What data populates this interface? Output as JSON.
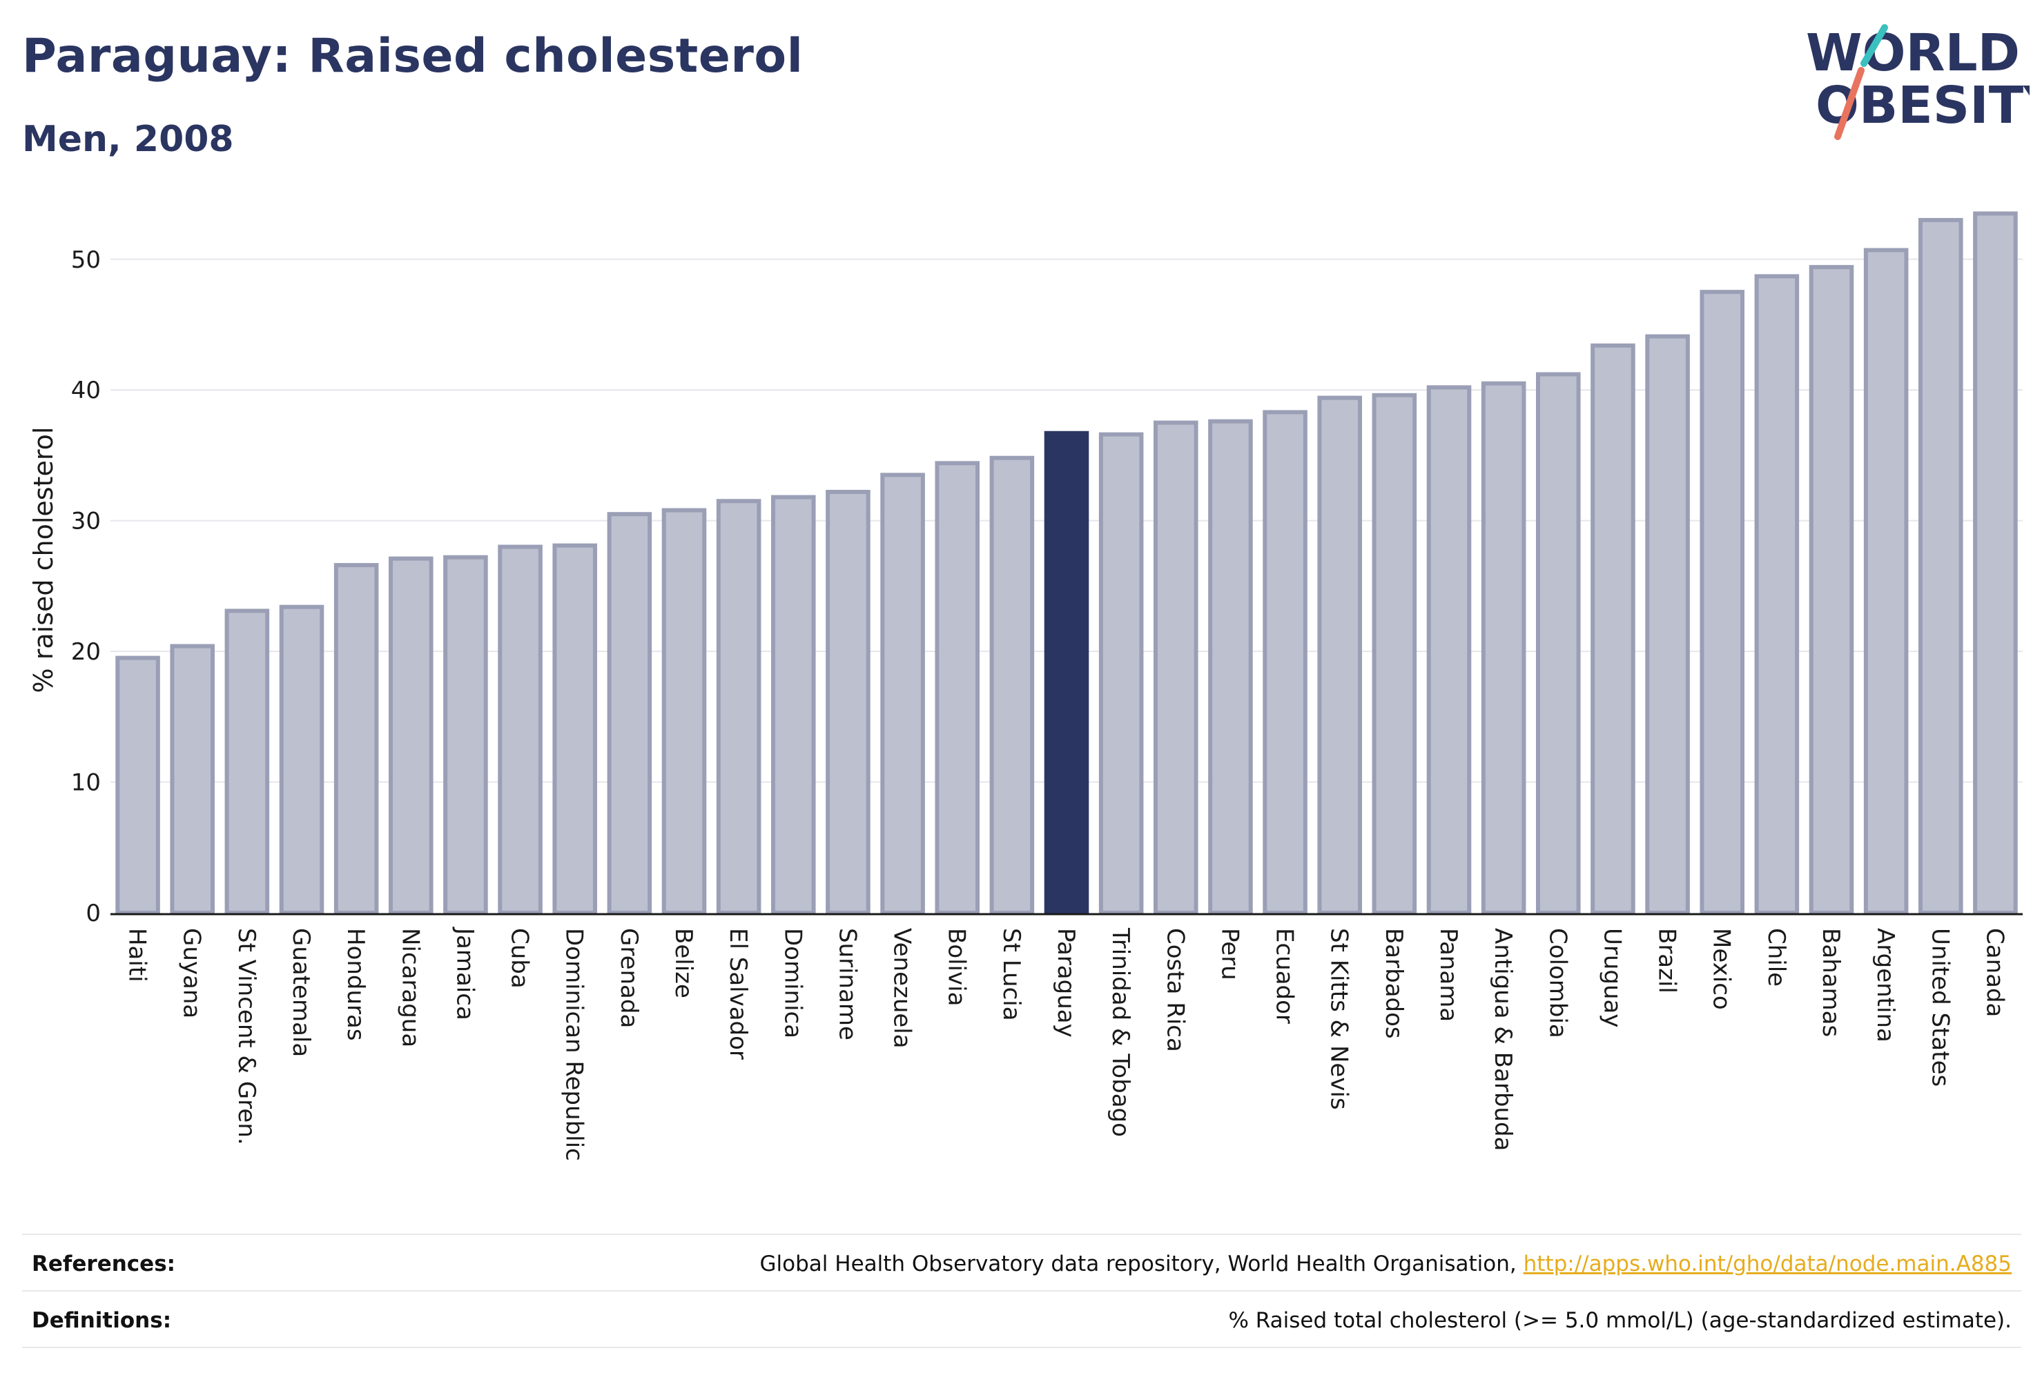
{
  "header": {
    "title": "Paraguay: Raised cholesterol",
    "subtitle": "Men, 2008"
  },
  "logo": {
    "line1": "WORLD",
    "line2": "OBESITY"
  },
  "colors": {
    "bar_fill": "#bdc0cf",
    "bar_stroke": "#9a9fb6",
    "highlight": "#2b3561",
    "grid": "#e6e6ec",
    "accent_teal": "#3bbfbf",
    "accent_coral": "#e8735f"
  },
  "chart_data": {
    "type": "bar",
    "ylabel": "% raised cholesterol",
    "ylim": [
      0,
      54
    ],
    "yticks": [
      0,
      10,
      20,
      30,
      40,
      50
    ],
    "grid": true,
    "highlight": "Paraguay",
    "categories": [
      "Haiti",
      "Guyana",
      "St Vincent & Gren.",
      "Guatemala",
      "Honduras",
      "Nicaragua",
      "Jamaica",
      "Cuba",
      "Dominican Republic",
      "Grenada",
      "Belize",
      "El Salvador",
      "Dominica",
      "Suriname",
      "Venezuela",
      "Bolivia",
      "St Lucia",
      "Paraguay",
      "Trinidad & Tobago",
      "Costa Rica",
      "Peru",
      "Ecuador",
      "St Kitts & Nevis",
      "Barbados",
      "Panama",
      "Antigua & Barbuda",
      "Colombia",
      "Uruguay",
      "Brazil",
      "Mexico",
      "Chile",
      "Bahamas",
      "Argentina",
      "United States",
      "Canada"
    ],
    "values": [
      19.5,
      20.4,
      23.1,
      23.4,
      26.6,
      27.1,
      27.2,
      28.0,
      28.1,
      30.5,
      30.8,
      31.5,
      31.8,
      32.2,
      33.5,
      34.4,
      34.8,
      36.7,
      36.6,
      37.5,
      37.6,
      38.3,
      39.4,
      39.6,
      40.2,
      40.5,
      41.2,
      43.4,
      44.1,
      47.5,
      48.7,
      49.4,
      50.7,
      53.0,
      53.5
    ]
  },
  "footer": {
    "references_label": "References:",
    "references_text": "Global Health Observatory data repository, World Health Organisation, ",
    "references_link": "http://apps.who.int/gho/data/node.main.A885",
    "definitions_label": "Definitions:",
    "definitions_text": "% Raised total cholesterol (>= 5.0 mmol/L) (age-standardized estimate)."
  }
}
